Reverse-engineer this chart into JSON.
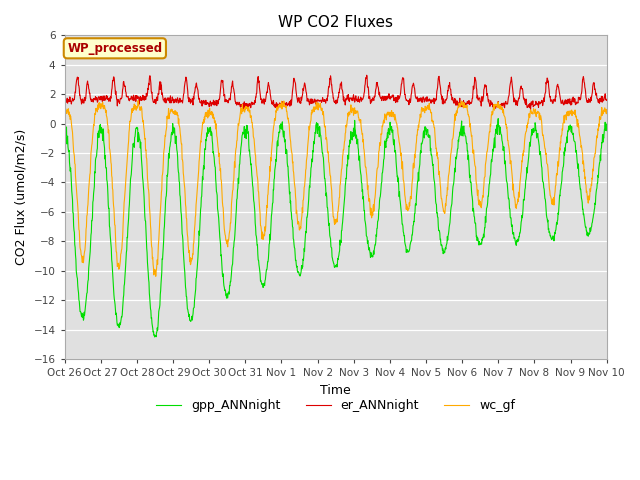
{
  "title": "WP CO2 Fluxes",
  "xlabel": "Time",
  "ylabel": "CO2 Flux (umol/m2/s)",
  "ylim": [
    -16,
    6
  ],
  "yticks": [
    -16,
    -14,
    -12,
    -10,
    -8,
    -6,
    -4,
    -2,
    0,
    2,
    4,
    6
  ],
  "bg_color": "#e0e0e0",
  "annotation_text": "WP_processed",
  "annotation_color": "#aa0000",
  "annotation_bg": "#ffffcc",
  "annotation_border": "#cc8800",
  "lines": [
    "gpp_ANNnight",
    "er_ANNnight",
    "wc_gf"
  ],
  "line_colors": [
    "#00dd00",
    "#dd0000",
    "#ffaa00"
  ],
  "tick_labels": [
    "Oct 26",
    "Oct 27",
    "Oct 28",
    "Oct 29",
    "Oct 30",
    "Oct 31",
    "Nov 1",
    "Nov 2",
    "Nov 3",
    "Nov 4",
    "Nov 5",
    "Nov 6",
    "Nov 7",
    "Nov 8",
    "Nov 9",
    "Nov 10"
  ],
  "n_days": 15,
  "points_per_day": 96
}
